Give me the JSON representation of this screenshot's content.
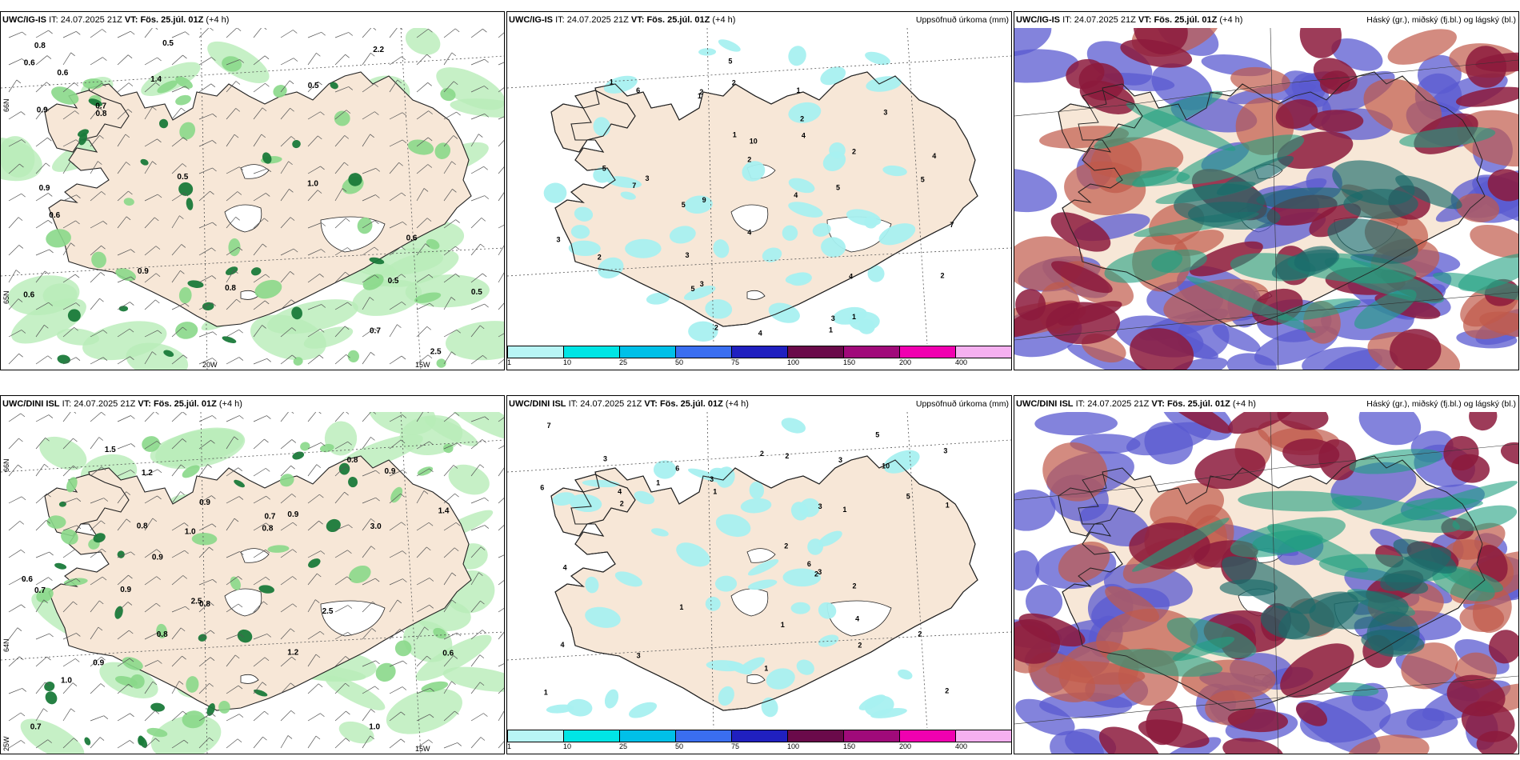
{
  "panels": {
    "p1": {
      "model": "UWC/IG-IS",
      "it_label": "IT:",
      "it": "24.07.2025 21Z",
      "vt_label": "VT:",
      "vt": "Fös. 25.júl. 01Z",
      "lead": "(+4 h)",
      "right": ""
    },
    "p2": {
      "model": "UWC/IG-IS",
      "it_label": "IT:",
      "it": "24.07.2025 21Z",
      "vt_label": "VT:",
      "vt": "Fös. 25.júl. 01Z",
      "lead": "(+4 h)",
      "right": "Uppsöfnuð úrkoma (mm)"
    },
    "p3": {
      "model": "UWC/IG-IS",
      "it_label": "IT:",
      "it": "24.07.2025 21Z",
      "vt_label": "VT:",
      "vt": "Fös. 25.júl. 01Z",
      "lead": "(+4 h)",
      "right": "Háský (gr.), miðský (fj.bl.) og lágský (bl.)"
    },
    "p4": {
      "model": "UWC/DINI ISL",
      "it_label": "IT:",
      "it": "24.07.2025 21Z",
      "vt_label": "VT:",
      "vt": "Fös. 25.júl. 01Z",
      "lead": "(+4 h)",
      "right": ""
    },
    "p5": {
      "model": "UWC/DINI ISL",
      "it_label": "IT:",
      "it": "24.07.2025 21Z",
      "vt_label": "VT:",
      "vt": "Fös. 25.júl. 01Z",
      "lead": "(+4 h)",
      "right": "Uppsöfnuð úrkoma (mm)"
    },
    "p6": {
      "model": "UWC/DINI ISL",
      "it_label": "IT:",
      "it": "24.07.2025 21Z",
      "vt_label": "VT:",
      "vt": "Fös. 25.júl. 01Z",
      "lead": "(+4 h)",
      "right": "Háský (gr.), miðský (fj.bl.) og lágský (bl.)"
    }
  },
  "grid_labels": {
    "lat66": "66N",
    "lat65": "65N",
    "lat64": "64N",
    "lon20": "20W",
    "lon15": "15W",
    "lon25": "25W"
  },
  "colorbar": {
    "colors": [
      "#b8f5f5",
      "#00e5e5",
      "#00c0e8",
      "#3a6ef0",
      "#2020c0",
      "#6a0a4a",
      "#a00a7a",
      "#f000b0",
      "#f5b0f0"
    ],
    "ticks": [
      "1",
      "10",
      "25",
      "50",
      "75",
      "100",
      "150",
      "200",
      "400"
    ]
  },
  "colors": {
    "land": "#f7e7d7",
    "precip_light": "#a8f0f0",
    "green_light": "#b8ecb8",
    "green_dark": "#1a7a3a",
    "high_cloud": "#8c1a3c",
    "mid_cloud": "#c05a4a",
    "low_cloud": "#5a5ad0",
    "teal": "#20a080"
  },
  "top_left_values": [
    "0.6",
    "0.9",
    "1.0",
    "0.6",
    "0.5",
    "0.8",
    "0.9",
    "0.5",
    "0.5",
    "0.7",
    "0.8",
    "0.5",
    "0.6",
    "0.5",
    "0.6",
    "1.4",
    "0.6",
    "0.7",
    "0.8",
    "2.2",
    "2.5",
    "0.9"
  ],
  "top_mid_values": [
    "5",
    "10",
    "5",
    "4",
    "5",
    "5",
    "2",
    "9",
    "2",
    "4",
    "7",
    "4",
    "4",
    "2",
    "1",
    "1",
    "5",
    "2",
    "3",
    "3",
    "7",
    "6",
    "4",
    "2",
    "4",
    "3",
    "1",
    "3",
    "3",
    "2",
    "1",
    "5",
    "1",
    "3",
    "2",
    "1",
    "2"
  ],
  "bottom_left_values": [
    "0.9",
    "1.0",
    "2.5",
    "0.8",
    "1.0",
    "0.7",
    "1.2",
    "0.9",
    "0.9",
    "0.8",
    "1.5",
    "0.8",
    "0.6",
    "0.9",
    "3.0",
    "0.7",
    "0.7",
    "0.9",
    "0.8",
    "0.6",
    "1.0",
    "0.8",
    "1.2",
    "1.4",
    "0.9",
    "2.5"
  ],
  "bottom_mid_values": [
    "6",
    "3",
    "4",
    "3",
    "2",
    "4",
    "5",
    "2",
    "2",
    "2",
    "2",
    "1",
    "2",
    "7",
    "6",
    "1",
    "3",
    "10",
    "2",
    "4",
    "5",
    "6",
    "4",
    "3",
    "3",
    "2",
    "3",
    "1",
    "1",
    "3",
    "2",
    "1",
    "1",
    "1",
    "1"
  ]
}
